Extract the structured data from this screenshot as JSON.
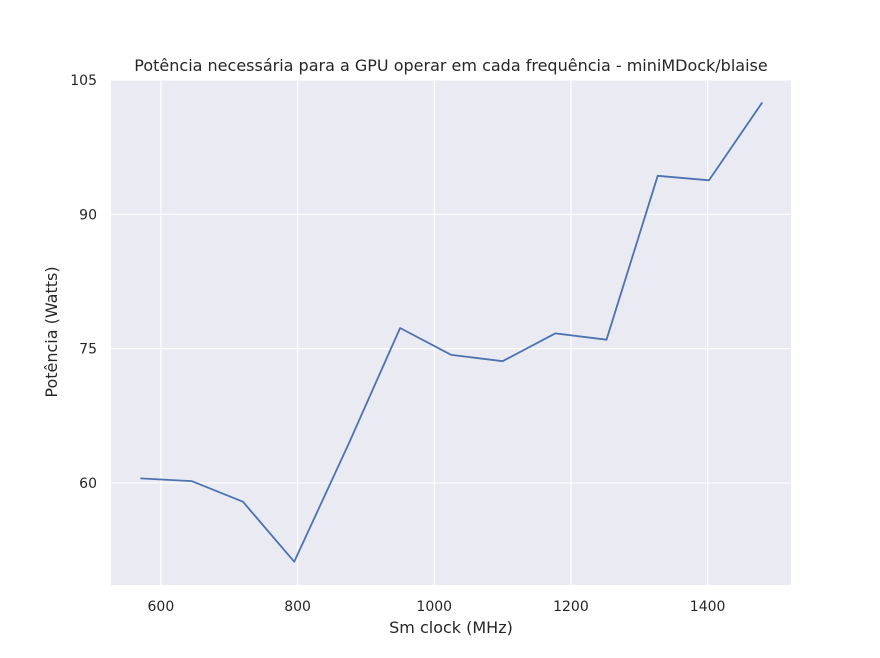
{
  "chart_data": {
    "type": "line",
    "title": "Potência necessária para a GPU operar em cada frequência - miniMDock/blaise",
    "xlabel": "Sm clock (MHz)",
    "ylabel": "Potência (Watts)",
    "xlim": [
      527,
      1522
    ],
    "ylim": [
      48.6,
      105
    ],
    "xticks": [
      600,
      800,
      1000,
      1200,
      1400
    ],
    "yticks": [
      60,
      75,
      90,
      105
    ],
    "grid": true,
    "legend": "none",
    "colors": {
      "background": "#eaeaf2",
      "grid": "#ffffff",
      "line": "#4c72b0",
      "text": "#262626"
    },
    "series": [
      {
        "x": [
          570,
          645,
          720,
          795,
          875,
          950,
          1025,
          1100,
          1177,
          1252,
          1327,
          1402,
          1480
        ],
        "y": [
          60.5,
          60.2,
          57.9,
          51.2,
          64.4,
          77.3,
          74.3,
          73.6,
          76.7,
          76.0,
          94.3,
          93.8,
          102.5
        ]
      }
    ]
  }
}
